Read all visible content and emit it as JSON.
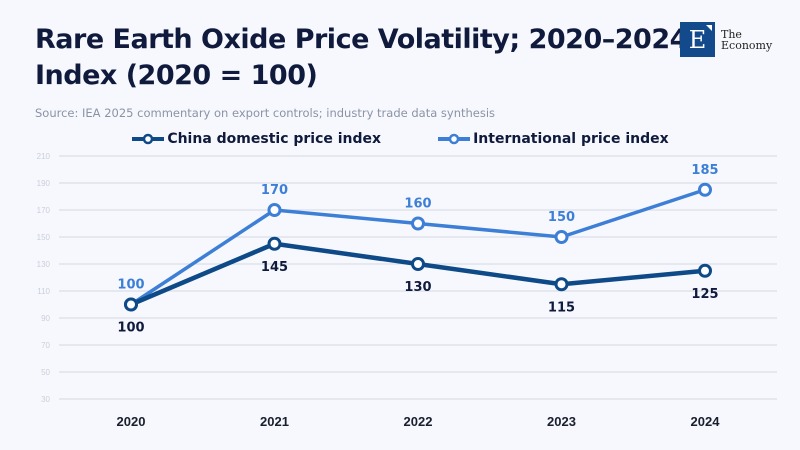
{
  "header": {
    "title_line1": "Rare Earth Oxide Price Volatility; 2020–2024",
    "title_line2": "Index (2020 = 100)",
    "subtitle": "Source: IEA 2025 commentary on export controls; industry trade data synthesis"
  },
  "logo": {
    "letter": "E",
    "line1": "The",
    "line2": "Economy",
    "color": "#134a8b"
  },
  "chart_data": {
    "type": "line",
    "title": "Rare Earth Oxide Price Volatility; 2020–2024 Index (2020 = 100)",
    "xlabel": "",
    "ylabel": "",
    "x": [
      "2020",
      "2021",
      "2022",
      "2023",
      "2024"
    ],
    "ylim": [
      30,
      210
    ],
    "yticks": [
      30,
      50,
      70,
      90,
      110,
      130,
      150,
      170,
      190,
      210
    ],
    "grid": true,
    "legend": "top-center",
    "series": [
      {
        "name": "China domestic price index",
        "values": [
          100,
          145,
          130,
          115,
          125
        ],
        "color": "#0e4a87",
        "label_color": "#0f1a3c",
        "label_position": "below"
      },
      {
        "name": "International price index",
        "values": [
          100,
          170,
          160,
          150,
          185
        ],
        "color": "#3d7fd6",
        "label_color": "#3d7fd6",
        "label_position": "above"
      }
    ]
  }
}
